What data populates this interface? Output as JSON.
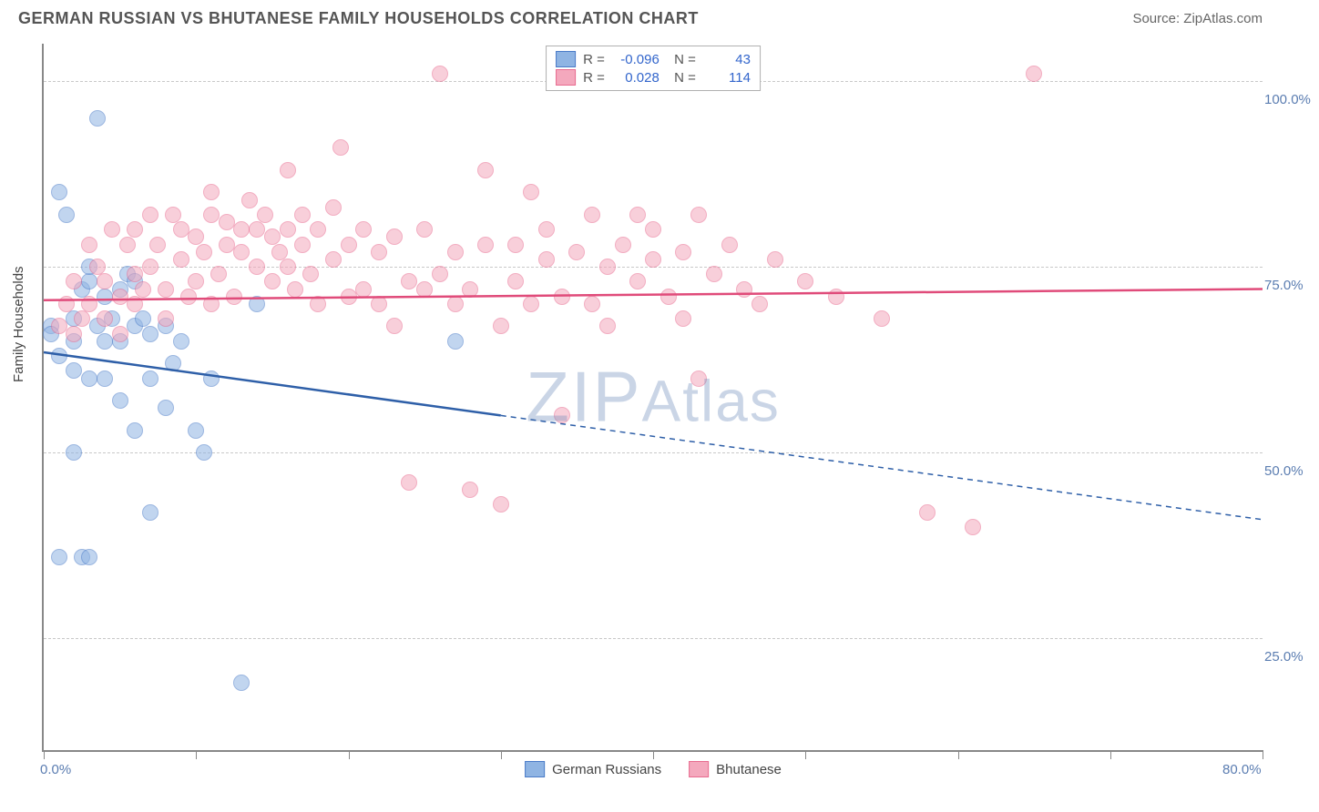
{
  "header": {
    "title": "GERMAN RUSSIAN VS BHUTANESE FAMILY HOUSEHOLDS CORRELATION CHART",
    "source": "Source: ZipAtlas.com"
  },
  "chart": {
    "type": "scatter",
    "ylabel": "Family Households",
    "watermark": "ZIPAtlas",
    "background_color": "#ffffff",
    "grid_color": "#c8c8c8",
    "axis_color": "#888888",
    "label_color": "#5b7db1",
    "xlim": [
      0,
      80
    ],
    "ylim": [
      10,
      105
    ],
    "y_gridlines": [
      25,
      50,
      75,
      100
    ],
    "y_tick_labels": [
      "25.0%",
      "50.0%",
      "75.0%",
      "100.0%"
    ],
    "x_ticks": [
      0,
      10,
      20,
      30,
      40,
      50,
      60,
      70,
      80
    ],
    "x_tick_labels": {
      "0": "0.0%",
      "80": "80.0%"
    },
    "point_radius": 9,
    "point_opacity": 0.55,
    "series": [
      {
        "name": "German Russians",
        "fill": "#8fb4e3",
        "stroke": "#4a7bc8",
        "trend_color": "#2e5fa8",
        "trend_width": 2.5,
        "R": "-0.096",
        "N": "43",
        "trend": {
          "x1": 0,
          "y1": 63.5,
          "x2_solid": 30,
          "y2_solid": 55,
          "x2": 80,
          "y2": 41
        },
        "points": [
          [
            0.5,
            67
          ],
          [
            0.5,
            66
          ],
          [
            1,
            85
          ],
          [
            1,
            63
          ],
          [
            1,
            36
          ],
          [
            1.5,
            82
          ],
          [
            2,
            50
          ],
          [
            2.5,
            36
          ],
          [
            3.5,
            95
          ],
          [
            3,
            36
          ],
          [
            3,
            60
          ],
          [
            2,
            68
          ],
          [
            2,
            65
          ],
          [
            2,
            61
          ],
          [
            2.5,
            72
          ],
          [
            3,
            73
          ],
          [
            3.5,
            67
          ],
          [
            3,
            75
          ],
          [
            4,
            71
          ],
          [
            4,
            65
          ],
          [
            4.5,
            68
          ],
          [
            4,
            60
          ],
          [
            5,
            57
          ],
          [
            5,
            72
          ],
          [
            5,
            65
          ],
          [
            5.5,
            74
          ],
          [
            6,
            73
          ],
          [
            6,
            67
          ],
          [
            6,
            53
          ],
          [
            6.5,
            68
          ],
          [
            7,
            66
          ],
          [
            7,
            60
          ],
          [
            7,
            42
          ],
          [
            8,
            67
          ],
          [
            8,
            56
          ],
          [
            8.5,
            62
          ],
          [
            9,
            65
          ],
          [
            10,
            53
          ],
          [
            10.5,
            50
          ],
          [
            11,
            60
          ],
          [
            13,
            19
          ],
          [
            14,
            70
          ],
          [
            27,
            65
          ]
        ]
      },
      {
        "name": "Bhutanese",
        "fill": "#f4a8bd",
        "stroke": "#e86b8f",
        "trend_color": "#e04b7a",
        "trend_width": 2.5,
        "R": "0.028",
        "N": "114",
        "trend": {
          "x1": 0,
          "y1": 70.5,
          "x2_solid": 80,
          "y2_solid": 72,
          "x2": 80,
          "y2": 72
        },
        "points": [
          [
            1,
            67
          ],
          [
            1.5,
            70
          ],
          [
            2,
            66
          ],
          [
            2,
            73
          ],
          [
            2.5,
            68
          ],
          [
            3,
            78
          ],
          [
            3,
            70
          ],
          [
            3.5,
            75
          ],
          [
            4,
            68
          ],
          [
            4,
            73
          ],
          [
            4.5,
            80
          ],
          [
            5,
            71
          ],
          [
            5,
            66
          ],
          [
            5.5,
            78
          ],
          [
            6,
            74
          ],
          [
            6,
            80
          ],
          [
            6,
            70
          ],
          [
            6.5,
            72
          ],
          [
            7,
            75
          ],
          [
            7,
            82
          ],
          [
            7.5,
            78
          ],
          [
            8,
            72
          ],
          [
            8,
            68
          ],
          [
            8.5,
            82
          ],
          [
            9,
            76
          ],
          [
            9,
            80
          ],
          [
            9.5,
            71
          ],
          [
            10,
            79
          ],
          [
            10,
            73
          ],
          [
            10.5,
            77
          ],
          [
            11,
            82
          ],
          [
            11,
            70
          ],
          [
            11,
            85
          ],
          [
            11.5,
            74
          ],
          [
            12,
            78
          ],
          [
            12,
            81
          ],
          [
            12.5,
            71
          ],
          [
            13,
            80
          ],
          [
            13,
            77
          ],
          [
            13.5,
            84
          ],
          [
            14,
            75
          ],
          [
            14,
            80
          ],
          [
            14.5,
            82
          ],
          [
            15,
            79
          ],
          [
            15,
            73
          ],
          [
            15.5,
            77
          ],
          [
            16,
            88
          ],
          [
            16,
            75
          ],
          [
            16,
            80
          ],
          [
            16.5,
            72
          ],
          [
            17,
            78
          ],
          [
            17,
            82
          ],
          [
            17.5,
            74
          ],
          [
            18,
            80
          ],
          [
            18,
            70
          ],
          [
            19,
            76
          ],
          [
            19,
            83
          ],
          [
            19.5,
            91
          ],
          [
            20,
            78
          ],
          [
            20,
            71
          ],
          [
            21,
            80
          ],
          [
            21,
            72
          ],
          [
            22,
            77
          ],
          [
            22,
            70
          ],
          [
            23,
            67
          ],
          [
            23,
            79
          ],
          [
            24,
            73
          ],
          [
            24,
            46
          ],
          [
            25,
            72
          ],
          [
            25,
            80
          ],
          [
            26,
            74
          ],
          [
            26,
            101
          ],
          [
            27,
            70
          ],
          [
            27,
            77
          ],
          [
            28,
            45
          ],
          [
            28,
            72
          ],
          [
            29,
            78
          ],
          [
            29,
            88
          ],
          [
            30,
            67
          ],
          [
            30,
            43
          ],
          [
            31,
            73
          ],
          [
            31,
            78
          ],
          [
            32,
            85
          ],
          [
            32,
            70
          ],
          [
            33,
            76
          ],
          [
            33,
            80
          ],
          [
            34,
            71
          ],
          [
            34,
            55
          ],
          [
            35,
            77
          ],
          [
            36,
            82
          ],
          [
            36,
            70
          ],
          [
            37,
            75
          ],
          [
            37,
            67
          ],
          [
            38,
            78
          ],
          [
            39,
            82
          ],
          [
            39,
            73
          ],
          [
            40,
            76
          ],
          [
            40,
            80
          ],
          [
            41,
            71
          ],
          [
            42,
            77
          ],
          [
            42,
            68
          ],
          [
            43,
            82
          ],
          [
            43,
            60
          ],
          [
            44,
            74
          ],
          [
            45,
            78
          ],
          [
            46,
            72
          ],
          [
            47,
            70
          ],
          [
            48,
            76
          ],
          [
            50,
            73
          ],
          [
            52,
            71
          ],
          [
            55,
            68
          ],
          [
            58,
            42
          ],
          [
            61,
            40
          ],
          [
            65,
            101
          ]
        ]
      }
    ]
  }
}
